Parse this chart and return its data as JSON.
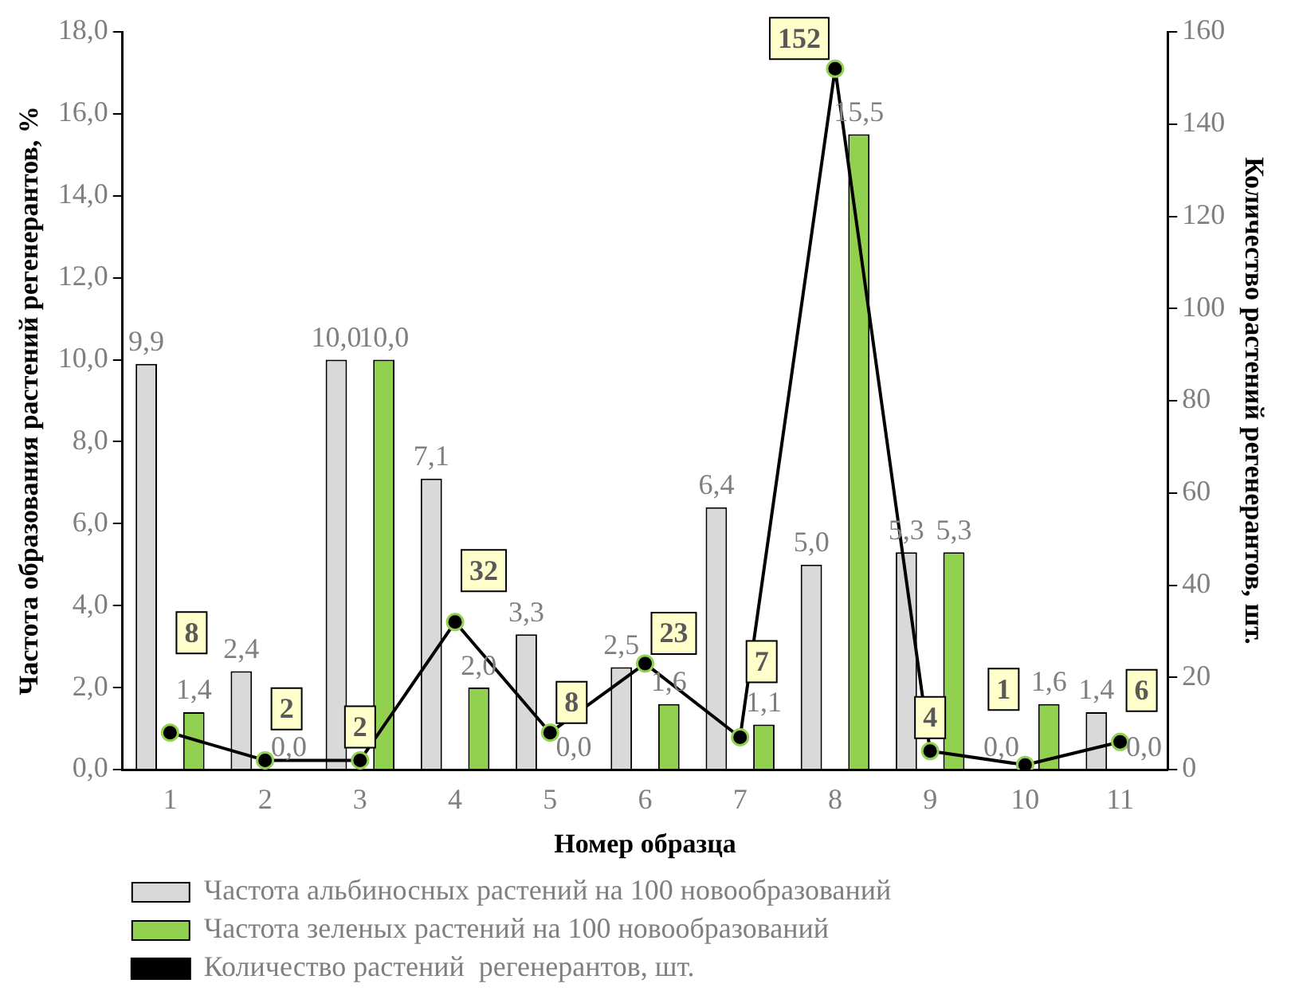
{
  "chart_data": {
    "type": "bar",
    "xlabel": "Номер образца",
    "ylabel": "Частота образования растений регенерантов, %",
    "y2label": "Количество растений регенерантов, шт.",
    "categories": [
      "1",
      "2",
      "3",
      "4",
      "5",
      "6",
      "7",
      "8",
      "9",
      "10",
      "11"
    ],
    "series": [
      {
        "name": "Частота альбиносных растений на 100 новообразований",
        "color": "#d9d9d9",
        "values": [
          9.9,
          2.4,
          10.0,
          7.1,
          3.3,
          2.5,
          6.4,
          5.0,
          5.3,
          0.0,
          1.4
        ],
        "value_labels": [
          "9,9",
          "2,4",
          "10,0",
          "7,1",
          "3,3",
          "2,5",
          "6,4",
          "5,0",
          "5,3",
          "0,0",
          "1,4"
        ]
      },
      {
        "name": "Частота зеленых растений на 100 новообразований",
        "color": "#92d050",
        "values": [
          1.4,
          0.0,
          10.0,
          2.0,
          0.0,
          1.6,
          1.1,
          15.5,
          5.3,
          1.6,
          0.0
        ],
        "value_labels": [
          "1,4",
          "0,0",
          "10,0",
          "2,0",
          "0,0",
          "1,6",
          "1,1",
          "15,5",
          "5,3",
          "1,6",
          "0,0"
        ]
      },
      {
        "name": "Количество растений  регенерантов, шт.",
        "type": "line",
        "axis": "y2",
        "color": "#000000",
        "values": [
          8,
          2,
          2,
          32,
          8,
          23,
          7,
          152,
          4,
          1,
          6
        ],
        "value_labels": [
          "8",
          "2",
          "2",
          "32",
          "8",
          "23",
          "7",
          "152",
          "4",
          "1",
          "6"
        ]
      }
    ],
    "ylim": [
      0,
      18
    ],
    "yticks": [
      {
        "value": 0,
        "label": "0,0"
      },
      {
        "value": 2,
        "label": "2,0"
      },
      {
        "value": 4,
        "label": "4,0"
      },
      {
        "value": 6,
        "label": "6,0"
      },
      {
        "value": 8,
        "label": "8,0"
      },
      {
        "value": 10,
        "label": "10,0"
      },
      {
        "value": 12,
        "label": "12,0"
      },
      {
        "value": 14,
        "label": "14,0"
      },
      {
        "value": 16,
        "label": "16,0"
      },
      {
        "value": 18,
        "label": "18,0"
      }
    ],
    "y2lim": [
      0,
      160
    ],
    "y2ticks": [
      0,
      20,
      40,
      60,
      80,
      100,
      120,
      140,
      160
    ],
    "grid": false,
    "legend": "bottom",
    "marker": "circle"
  }
}
